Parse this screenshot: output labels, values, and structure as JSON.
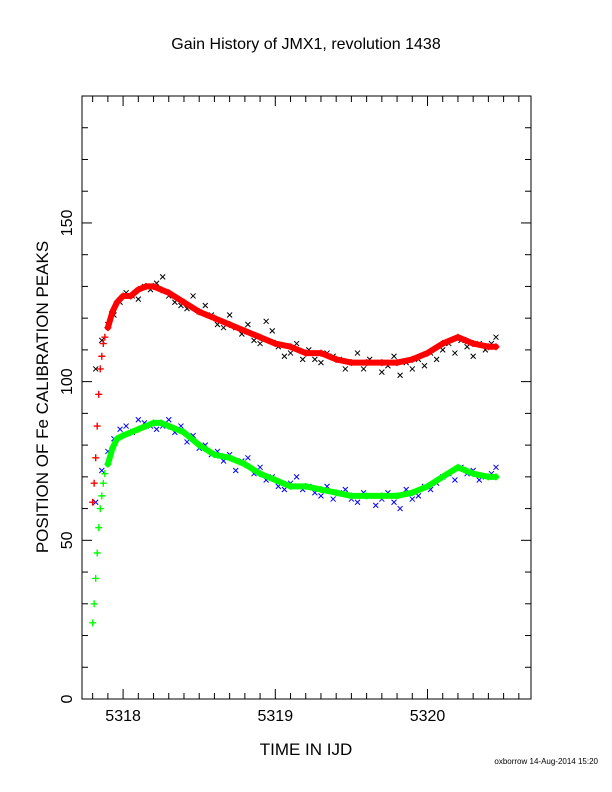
{
  "chart_data": {
    "type": "scatter",
    "title": "Gain History of JMX1, revolution 1438",
    "xlabel": "TIME IN IJD",
    "ylabel": "POSITION OF Fe CALIBRATION PEAKS",
    "xlim": [
      5317.73,
      5320.68
    ],
    "ylim": [
      0,
      190
    ],
    "x_ticks": [
      5318,
      5319,
      5320
    ],
    "y_ticks": [
      0,
      50,
      100,
      150
    ],
    "grid": false,
    "series": [
      {
        "marker": "x",
        "color": "#000000",
        "x": [
          5317.82,
          5317.86,
          5317.9,
          5317.94,
          5317.98,
          5318.02,
          5318.06,
          5318.1,
          5318.14,
          5318.18,
          5318.22,
          5318.26,
          5318.3,
          5318.34,
          5318.38,
          5318.42,
          5318.46,
          5318.5,
          5318.54,
          5318.58,
          5318.62,
          5318.66,
          5318.7,
          5318.74,
          5318.78,
          5318.82,
          5318.86,
          5318.9,
          5318.94,
          5318.98,
          5319.02,
          5319.06,
          5319.1,
          5319.14,
          5319.18,
          5319.22,
          5319.26,
          5319.3,
          5319.34,
          5319.38,
          5319.42,
          5319.46,
          5319.5,
          5319.54,
          5319.58,
          5319.62,
          5319.66,
          5319.7,
          5319.74,
          5319.78,
          5319.82,
          5319.86,
          5319.9,
          5319.94,
          5319.98,
          5320.02,
          5320.06,
          5320.1,
          5320.14,
          5320.18,
          5320.22,
          5320.26,
          5320.3,
          5320.34,
          5320.38,
          5320.42,
          5320.45
        ],
        "y": [
          104,
          113,
          118,
          121,
          125,
          128,
          127,
          126,
          130,
          129,
          131,
          133,
          127,
          125,
          124,
          123,
          127,
          122,
          124,
          121,
          118,
          117,
          121,
          117,
          115,
          118,
          113,
          112,
          119,
          116,
          111,
          108,
          109,
          112,
          107,
          110,
          107,
          106,
          109,
          108,
          107,
          104,
          106,
          109,
          104,
          107,
          106,
          103,
          105,
          108,
          102,
          106,
          104,
          107,
          105,
          109,
          107,
          110,
          112,
          109,
          113,
          111,
          108,
          112,
          110,
          112,
          114
        ]
      },
      {
        "marker": "x",
        "color": "#0000ff",
        "x": [
          5317.82,
          5317.86,
          5317.9,
          5317.94,
          5317.98,
          5318.02,
          5318.06,
          5318.1,
          5318.14,
          5318.18,
          5318.22,
          5318.26,
          5318.3,
          5318.34,
          5318.38,
          5318.42,
          5318.46,
          5318.5,
          5318.54,
          5318.58,
          5318.62,
          5318.66,
          5318.7,
          5318.74,
          5318.78,
          5318.82,
          5318.86,
          5318.9,
          5318.94,
          5318.98,
          5319.02,
          5319.06,
          5319.1,
          5319.14,
          5319.18,
          5319.22,
          5319.26,
          5319.3,
          5319.34,
          5319.38,
          5319.42,
          5319.46,
          5319.5,
          5319.54,
          5319.58,
          5319.62,
          5319.66,
          5319.7,
          5319.74,
          5319.78,
          5319.82,
          5319.86,
          5319.9,
          5319.94,
          5319.98,
          5320.02,
          5320.06,
          5320.1,
          5320.14,
          5320.18,
          5320.22,
          5320.26,
          5320.3,
          5320.34,
          5320.38,
          5320.42,
          5320.45
        ],
        "y": [
          62,
          72,
          78,
          82,
          85,
          86,
          84,
          88,
          87,
          86,
          85,
          86,
          88,
          84,
          86,
          81,
          83,
          79,
          80,
          77,
          78,
          75,
          77,
          72,
          75,
          76,
          71,
          73,
          69,
          70,
          67,
          66,
          68,
          70,
          66,
          67,
          65,
          64,
          67,
          63,
          65,
          66,
          63,
          62,
          65,
          64,
          61,
          63,
          65,
          62,
          60,
          66,
          63,
          64,
          67,
          66,
          68,
          70,
          71,
          69,
          73,
          71,
          72,
          69,
          70,
          71,
          73
        ]
      },
      {
        "marker": "+",
        "color": "#ff0000",
        "name": "",
        "x": [
          5317.8,
          5317.81,
          5317.82,
          5317.83,
          5317.84,
          5317.85,
          5317.86,
          5317.87,
          5317.88,
          5317.9,
          5317.93,
          5317.96,
          5318.0,
          5318.05,
          5318.1,
          5318.15,
          5318.2,
          5318.25,
          5318.3,
          5318.4,
          5318.5,
          5318.6,
          5318.7,
          5318.8,
          5318.9,
          5319.0,
          5319.1,
          5319.2,
          5319.3,
          5319.4,
          5319.5,
          5319.6,
          5319.7,
          5319.8,
          5319.9,
          5320.0,
          5320.1,
          5320.2,
          5320.25,
          5320.3,
          5320.4,
          5320.45
        ],
        "y": [
          62,
          68,
          76,
          86,
          96,
          104,
          108,
          112,
          114,
          117,
          122,
          125,
          127,
          127,
          129,
          130,
          130,
          129,
          128,
          125,
          122,
          120,
          118,
          116,
          114,
          112,
          111,
          109,
          109,
          107,
          106,
          106,
          106,
          106,
          107,
          109,
          112,
          114,
          113,
          112,
          111,
          111
        ]
      },
      {
        "marker": "+",
        "color": "#00ff00",
        "name": "",
        "x": [
          5317.8,
          5317.81,
          5317.82,
          5317.83,
          5317.84,
          5317.85,
          5317.86,
          5317.87,
          5317.88,
          5317.9,
          5317.93,
          5317.96,
          5318.0,
          5318.05,
          5318.1,
          5318.15,
          5318.2,
          5318.25,
          5318.3,
          5318.4,
          5318.5,
          5318.6,
          5318.7,
          5318.8,
          5318.9,
          5319.0,
          5319.1,
          5319.2,
          5319.3,
          5319.4,
          5319.5,
          5319.6,
          5319.7,
          5319.8,
          5319.9,
          5320.0,
          5320.1,
          5320.2,
          5320.25,
          5320.3,
          5320.4,
          5320.45
        ],
        "y": [
          24,
          30,
          38,
          46,
          54,
          60,
          64,
          68,
          71,
          74,
          79,
          82,
          83,
          84,
          85,
          86,
          87,
          87,
          86,
          84,
          80,
          77,
          76,
          74,
          71,
          69,
          67,
          67,
          66,
          65,
          64,
          64,
          64,
          64,
          65,
          67,
          70,
          73,
          72,
          71,
          70,
          70
        ]
      }
    ]
  },
  "footer": "oxborrow 14-Aug-2014 15:20"
}
